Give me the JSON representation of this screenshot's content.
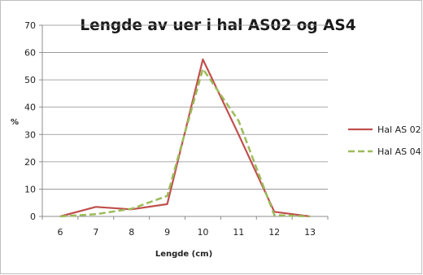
{
  "chart_data": {
    "type": "line",
    "title": "Lengde av uer i hal AS02 og AS4",
    "xlabel": "Lengde (cm)",
    "ylabel": "%",
    "x": [
      6,
      7,
      8,
      9,
      10,
      11,
      12,
      13
    ],
    "xlim": [
      5.5,
      13.5
    ],
    "ylim": [
      0,
      70
    ],
    "yticks": [
      0,
      10,
      20,
      30,
      40,
      50,
      60,
      70
    ],
    "grid": "horizontal",
    "legend_position": "right",
    "series": [
      {
        "name": "Hal AS 02",
        "values": [
          0,
          3.5,
          2.6,
          4.5,
          57.5,
          30,
          1.7,
          0
        ],
        "color": "#c0504d",
        "style": "solid"
      },
      {
        "name": "Hal AS 04",
        "values": [
          0,
          0.8,
          2.8,
          7.5,
          54,
          35,
          0.5,
          0
        ],
        "color": "#9bbb59",
        "style": "dashed"
      }
    ]
  }
}
